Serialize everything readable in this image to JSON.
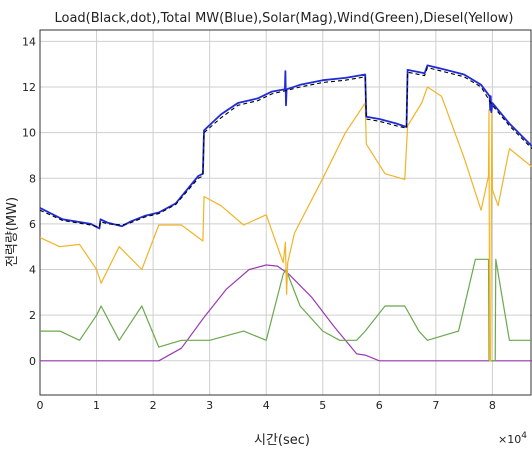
{
  "chart_data": {
    "type": "line",
    "title": "Load(Black,dot),Total  MW(Blue),Solar(Mag),Wind(Green),Diesel(Yellow)",
    "xlabel": "시간(sec)",
    "ylabel": "전력량(MW)",
    "x_exponent_label": "×10",
    "x_exponent_power": "4",
    "xlim": [
      0,
      8.7
    ],
    "ylim": [
      -1.5,
      14.5
    ],
    "x_ticks": [
      0,
      1,
      2,
      3,
      4,
      5,
      6,
      7,
      8
    ],
    "y_ticks": [
      0,
      2,
      4,
      6,
      8,
      10,
      12,
      14
    ],
    "x_tick_labels": [
      "0",
      "1",
      "2",
      "3",
      "4",
      "5",
      "6",
      "7",
      "8"
    ],
    "y_tick_labels": [
      "0",
      "2",
      "4",
      "6",
      "8",
      "10",
      "12",
      "14"
    ],
    "grid": true,
    "colors": {
      "load": "#000000",
      "total": "#1f2bd6",
      "solar": "#9b3bb5",
      "wind": "#6aa84f",
      "diesel": "#f0b429"
    },
    "series": [
      {
        "key": "total",
        "x": [
          0,
          0.4,
          0.9,
          1.05,
          1.07,
          1.2,
          1.45,
          1.6,
          1.85,
          2.1,
          2.4,
          2.8,
          2.88,
          2.9,
          3.2,
          3.5,
          3.85,
          4.1,
          4.33,
          4.34,
          4.35,
          4.36,
          4.6,
          5.0,
          5.4,
          5.75,
          5.77,
          6.0,
          6.3,
          6.48,
          6.5,
          6.8,
          6.85,
          7.1,
          7.5,
          7.8,
          7.95,
          7.96,
          7.97,
          7.98,
          8.0,
          8.3,
          8.7
        ],
        "y": [
          6.7,
          6.2,
          6.0,
          5.8,
          6.2,
          6.05,
          5.9,
          6.1,
          6.35,
          6.5,
          6.9,
          8.1,
          8.2,
          10.1,
          10.8,
          11.3,
          11.5,
          11.8,
          11.9,
          12.7,
          11.2,
          11.9,
          12.1,
          12.3,
          12.4,
          12.55,
          10.7,
          10.6,
          10.4,
          10.25,
          12.75,
          12.6,
          12.95,
          12.8,
          12.55,
          12.1,
          11.6,
          11.0,
          11.6,
          10.9,
          11.3,
          10.4,
          9.4
        ]
      },
      {
        "key": "load",
        "x": [
          0,
          0.4,
          0.9,
          1.05,
          1.07,
          1.2,
          1.45,
          1.6,
          1.85,
          2.1,
          2.4,
          2.8,
          2.88,
          2.9,
          3.2,
          3.5,
          3.85,
          4.1,
          4.36,
          4.6,
          5.0,
          5.4,
          5.75,
          5.77,
          6.0,
          6.3,
          6.48,
          6.5,
          6.8,
          6.85,
          7.1,
          7.5,
          7.8,
          8.0,
          8.3,
          8.7
        ],
        "y": [
          6.6,
          6.15,
          5.95,
          5.85,
          6.1,
          6.0,
          5.95,
          6.05,
          6.3,
          6.45,
          6.85,
          8.0,
          8.1,
          10.0,
          10.65,
          11.2,
          11.4,
          11.7,
          11.85,
          12.0,
          12.2,
          12.3,
          12.45,
          10.6,
          10.5,
          10.3,
          10.2,
          12.65,
          12.5,
          12.85,
          12.7,
          12.45,
          12.0,
          11.2,
          10.3,
          9.3
        ]
      },
      {
        "key": "diesel",
        "x": [
          0,
          0.35,
          0.7,
          1.0,
          1.08,
          1.4,
          1.8,
          2.1,
          2.5,
          2.88,
          2.9,
          3.2,
          3.6,
          4.0,
          4.3,
          4.34,
          4.36,
          4.38,
          4.5,
          5.0,
          5.4,
          5.75,
          5.77,
          6.1,
          6.45,
          6.5,
          6.75,
          6.85,
          7.1,
          7.5,
          7.8,
          7.93,
          7.94,
          7.95,
          7.97,
          7.99,
          8.0,
          8.1,
          8.3,
          8.7
        ],
        "y": [
          5.4,
          5.0,
          5.1,
          4.0,
          3.4,
          5.0,
          4.0,
          5.95,
          5.95,
          5.25,
          7.2,
          6.8,
          5.95,
          6.4,
          4.3,
          5.2,
          2.9,
          4.3,
          5.6,
          8.0,
          10.0,
          11.3,
          9.5,
          8.2,
          7.95,
          10.3,
          11.3,
          12.0,
          11.6,
          8.9,
          6.6,
          8.1,
          11.0,
          0.0,
          0.0,
          11.0,
          7.5,
          6.8,
          9.3,
          8.5
        ]
      },
      {
        "key": "wind",
        "x": [
          0,
          0.35,
          0.7,
          1.0,
          1.08,
          1.4,
          1.8,
          2.1,
          2.5,
          3.0,
          3.6,
          4.0,
          4.3,
          4.35,
          4.6,
          5.0,
          5.3,
          5.6,
          5.75,
          6.1,
          6.45,
          6.7,
          6.85,
          7.4,
          7.7,
          7.93,
          7.94,
          8.05,
          8.06,
          8.3,
          8.7
        ],
        "y": [
          1.3,
          1.3,
          0.9,
          2.0,
          2.4,
          0.9,
          2.4,
          0.6,
          0.9,
          0.9,
          1.3,
          0.9,
          3.8,
          4.0,
          2.4,
          1.3,
          0.9,
          0.9,
          1.3,
          2.4,
          2.4,
          1.3,
          0.9,
          1.3,
          4.45,
          4.45,
          0.0,
          0.0,
          4.45,
          0.9,
          0.9
        ]
      },
      {
        "key": "solar",
        "x": [
          0,
          0.5,
          1.0,
          1.5,
          2.0,
          2.1,
          2.5,
          2.9,
          3.3,
          3.7,
          4.0,
          4.2,
          4.4,
          4.8,
          5.2,
          5.6,
          5.75,
          6.0,
          6.5,
          7.0,
          7.5,
          8.0,
          8.7
        ],
        "y": [
          0,
          0,
          0,
          0,
          0,
          0,
          0.55,
          1.9,
          3.15,
          4.0,
          4.2,
          4.15,
          3.8,
          2.8,
          1.5,
          0.3,
          0.25,
          0,
          0,
          0,
          0,
          0,
          0
        ]
      }
    ]
  }
}
